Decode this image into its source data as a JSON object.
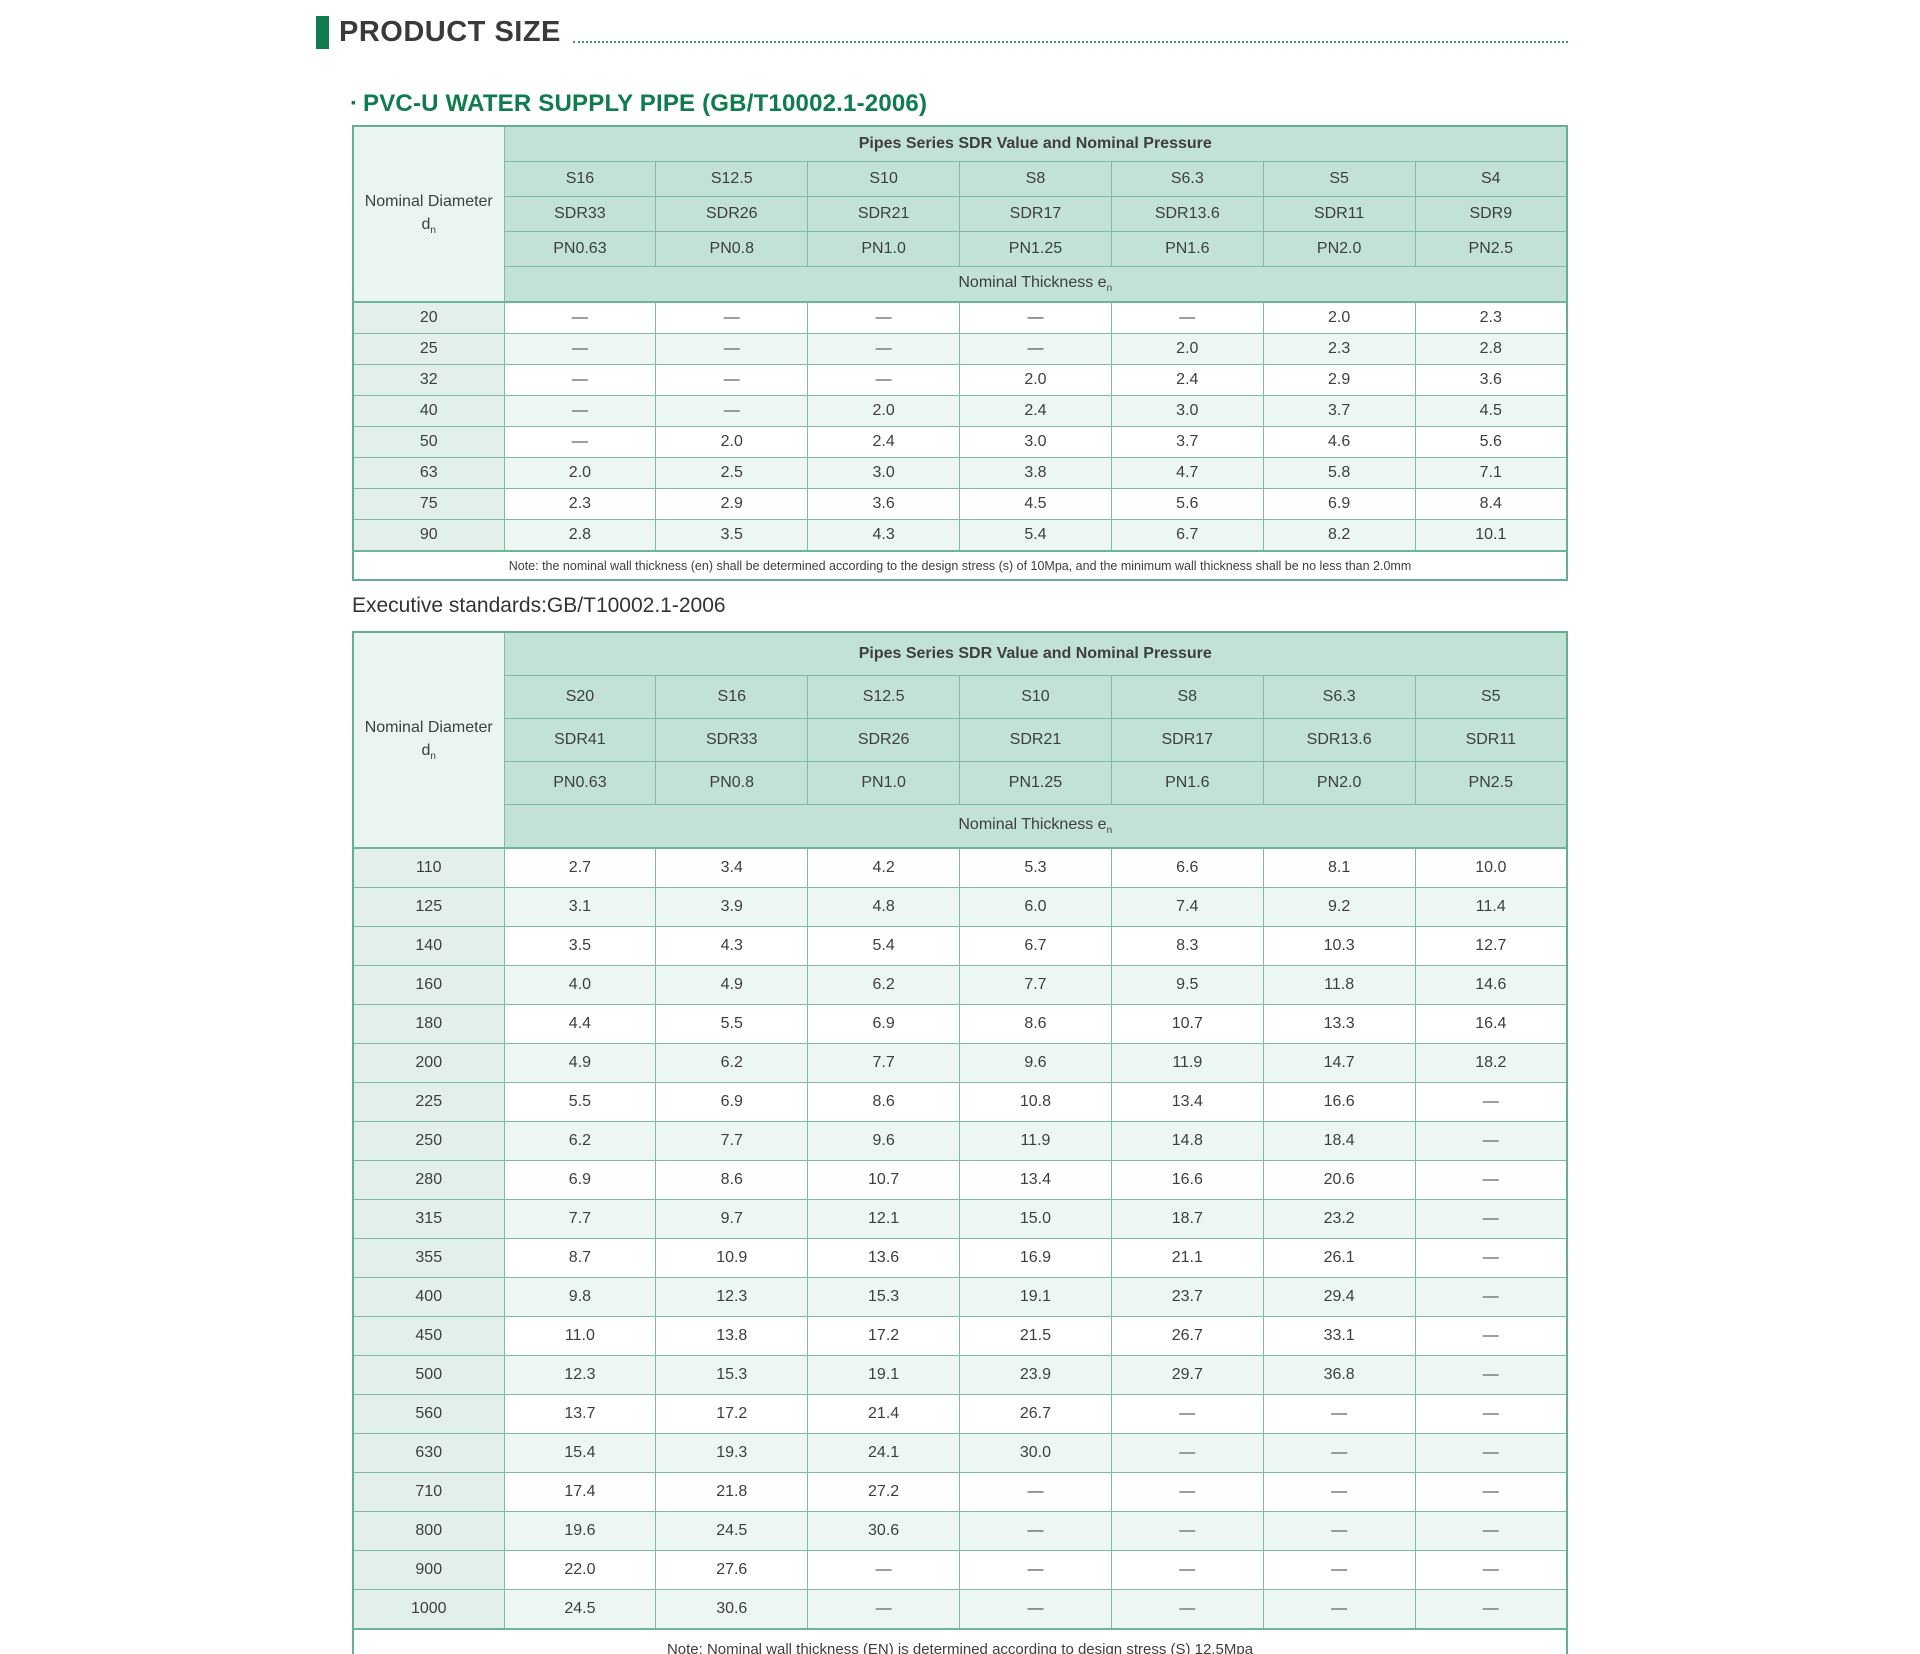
{
  "page": {
    "section_title": "PRODUCT SIZE",
    "subtitle_bullet": "·",
    "subtitle": "PVC-U WATER SUPPLY PIPE (GB/T10002.1-2006)",
    "executive_standards": "Executive standards:GB/T10002.1-2006"
  },
  "colors": {
    "accent_dark_green": "#0e7c4e",
    "table_header_green": "#c2e2d5",
    "row_tint_green": "#edf7f2",
    "diameter_column_tint": "#e2f0e9",
    "border_green": "#7bbca3",
    "outer_border_green": "#65ae91",
    "title_text": "#3a3a3a",
    "cell_text": "#3e3e3e"
  },
  "tables": [
    {
      "header_title": "Pipes Series SDR Value and Nominal Pressure",
      "left_header_line1": "Nominal Diameter",
      "left_header_symbol": "d",
      "left_header_subscript": "n",
      "s_values": [
        "S16",
        "S12.5",
        "S10",
        "S8",
        "S6.3",
        "S5",
        "S4"
      ],
      "sdr_values": [
        "SDR33",
        "SDR26",
        "SDR21",
        "SDR17",
        "SDR13.6",
        "SDR11",
        "SDR9"
      ],
      "pn_values": [
        "PN0.63",
        "PN0.8",
        "PN1.0",
        "PN1.25",
        "PN1.6",
        "PN2.0",
        "PN2.5"
      ],
      "thickness_label": "Nominal Thickness e",
      "thickness_subscript": "n",
      "rows": [
        {
          "d": "20",
          "values": [
            "—",
            "—",
            "—",
            "—",
            "—",
            "2.0",
            "2.3"
          ]
        },
        {
          "d": "25",
          "values": [
            "—",
            "—",
            "—",
            "—",
            "2.0",
            "2.3",
            "2.8"
          ]
        },
        {
          "d": "32",
          "values": [
            "—",
            "—",
            "—",
            "2.0",
            "2.4",
            "2.9",
            "3.6"
          ]
        },
        {
          "d": "40",
          "values": [
            "—",
            "—",
            "2.0",
            "2.4",
            "3.0",
            "3.7",
            "4.5"
          ]
        },
        {
          "d": "50",
          "values": [
            "—",
            "2.0",
            "2.4",
            "3.0",
            "3.7",
            "4.6",
            "5.6"
          ]
        },
        {
          "d": "63",
          "values": [
            "2.0",
            "2.5",
            "3.0",
            "3.8",
            "4.7",
            "5.8",
            "7.1"
          ]
        },
        {
          "d": "75",
          "values": [
            "2.3",
            "2.9",
            "3.6",
            "4.5",
            "5.6",
            "6.9",
            "8.4"
          ]
        },
        {
          "d": "90",
          "values": [
            "2.8",
            "3.5",
            "4.3",
            "5.4",
            "6.7",
            "8.2",
            "10.1"
          ]
        }
      ],
      "note": "Note: the nominal wall thickness (en) shall be determined according to the design stress (s) of 10Mpa, and the minimum wall thickness shall be no less than 2.0mm"
    },
    {
      "header_title": "Pipes Series SDR Value and Nominal Pressure",
      "left_header_line1": "Nominal Diameter",
      "left_header_symbol": "d",
      "left_header_subscript": "n",
      "s_values": [
        "S20",
        "S16",
        "S12.5",
        "S10",
        "S8",
        "S6.3",
        "S5"
      ],
      "sdr_values": [
        "SDR41",
        "SDR33",
        "SDR26",
        "SDR21",
        "SDR17",
        "SDR13.6",
        "SDR11"
      ],
      "pn_values": [
        "PN0.63",
        "PN0.8",
        "PN1.0",
        "PN1.25",
        "PN1.6",
        "PN2.0",
        "PN2.5"
      ],
      "thickness_label": "Nominal Thickness e",
      "thickness_subscript": "n",
      "rows": [
        {
          "d": "110",
          "values": [
            "2.7",
            "3.4",
            "4.2",
            "5.3",
            "6.6",
            "8.1",
            "10.0"
          ]
        },
        {
          "d": "125",
          "values": [
            "3.1",
            "3.9",
            "4.8",
            "6.0",
            "7.4",
            "9.2",
            "11.4"
          ]
        },
        {
          "d": "140",
          "values": [
            "3.5",
            "4.3",
            "5.4",
            "6.7",
            "8.3",
            "10.3",
            "12.7"
          ]
        },
        {
          "d": "160",
          "values": [
            "4.0",
            "4.9",
            "6.2",
            "7.7",
            "9.5",
            "11.8",
            "14.6"
          ]
        },
        {
          "d": "180",
          "values": [
            "4.4",
            "5.5",
            "6.9",
            "8.6",
            "10.7",
            "13.3",
            "16.4"
          ]
        },
        {
          "d": "200",
          "values": [
            "4.9",
            "6.2",
            "7.7",
            "9.6",
            "11.9",
            "14.7",
            "18.2"
          ]
        },
        {
          "d": "225",
          "values": [
            "5.5",
            "6.9",
            "8.6",
            "10.8",
            "13.4",
            "16.6",
            "—"
          ]
        },
        {
          "d": "250",
          "values": [
            "6.2",
            "7.7",
            "9.6",
            "11.9",
            "14.8",
            "18.4",
            "—"
          ]
        },
        {
          "d": "280",
          "values": [
            "6.9",
            "8.6",
            "10.7",
            "13.4",
            "16.6",
            "20.6",
            "—"
          ]
        },
        {
          "d": "315",
          "values": [
            "7.7",
            "9.7",
            "12.1",
            "15.0",
            "18.7",
            "23.2",
            "—"
          ]
        },
        {
          "d": "355",
          "values": [
            "8.7",
            "10.9",
            "13.6",
            "16.9",
            "21.1",
            "26.1",
            "—"
          ]
        },
        {
          "d": "400",
          "values": [
            "9.8",
            "12.3",
            "15.3",
            "19.1",
            "23.7",
            "29.4",
            "—"
          ]
        },
        {
          "d": "450",
          "values": [
            "11.0",
            "13.8",
            "17.2",
            "21.5",
            "26.7",
            "33.1",
            "—"
          ]
        },
        {
          "d": "500",
          "values": [
            "12.3",
            "15.3",
            "19.1",
            "23.9",
            "29.7",
            "36.8",
            "—"
          ]
        },
        {
          "d": "560",
          "values": [
            "13.7",
            "17.2",
            "21.4",
            "26.7",
            "—",
            "—",
            "—"
          ]
        },
        {
          "d": "630",
          "values": [
            "15.4",
            "19.3",
            "24.1",
            "30.0",
            "—",
            "—",
            "—"
          ]
        },
        {
          "d": "710",
          "values": [
            "17.4",
            "21.8",
            "27.2",
            "—",
            "—",
            "—",
            "—"
          ]
        },
        {
          "d": "800",
          "values": [
            "19.6",
            "24.5",
            "30.6",
            "—",
            "—",
            "—",
            "—"
          ]
        },
        {
          "d": "900",
          "values": [
            "22.0",
            "27.6",
            "—",
            "—",
            "—",
            "—",
            "—"
          ]
        },
        {
          "d": "1000",
          "values": [
            "24.5",
            "30.6",
            "—",
            "—",
            "—",
            "—",
            "—"
          ]
        }
      ],
      "note": "Note: Nominal wall thickness (EN) is determined according to design stress (S) 12.5Mpa"
    }
  ]
}
